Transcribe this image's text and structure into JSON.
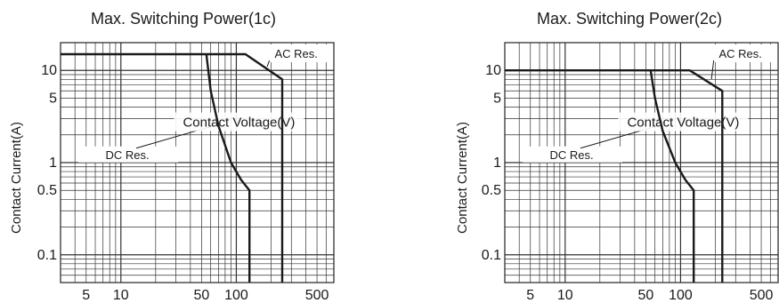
{
  "chart_data": [
    {
      "type": "line",
      "title": "Max. Switching Power(1c)",
      "xlabel": "Contact Voltage(V)",
      "ylabel": "Contact Current(A)",
      "x_scale": "log",
      "y_scale": "log",
      "xlim": [
        3,
        700
      ],
      "ylim": [
        0.05,
        20
      ],
      "grid": true,
      "x_ticks": [
        "5",
        "10",
        "50",
        "100",
        "500"
      ],
      "y_ticks": [
        "10",
        "5",
        "1",
        "0.5",
        "0.1"
      ],
      "series": [
        {
          "name": "AC Res.",
          "x": [
            3,
            120,
            250,
            250
          ],
          "y": [
            15,
            15,
            8,
            0.05
          ]
        },
        {
          "name": "DC Res.",
          "x": [
            55,
            60,
            70,
            90,
            110,
            130,
            130
          ],
          "y": [
            15,
            6,
            2.5,
            1,
            0.65,
            0.5,
            0.05
          ]
        }
      ]
    },
    {
      "type": "line",
      "title": "Max. Switching Power(2c)",
      "xlabel": "Contact Voltage(V)",
      "ylabel": "Contact Current(A)",
      "x_scale": "log",
      "y_scale": "log",
      "xlim": [
        3,
        700
      ],
      "ylim": [
        0.05,
        20
      ],
      "grid": true,
      "x_ticks": [
        "5",
        "10",
        "50",
        "100",
        "500"
      ],
      "y_ticks": [
        "10",
        "5",
        "1",
        "0.5",
        "0.1"
      ],
      "series": [
        {
          "name": "AC Res.",
          "x": [
            3,
            120,
            230,
            230
          ],
          "y": [
            10,
            10,
            6,
            0.05
          ]
        },
        {
          "name": "DC Res.",
          "x": [
            55,
            60,
            70,
            90,
            110,
            130,
            130
          ],
          "y": [
            10,
            5,
            2.2,
            1,
            0.65,
            0.5,
            0.05
          ]
        }
      ]
    }
  ]
}
